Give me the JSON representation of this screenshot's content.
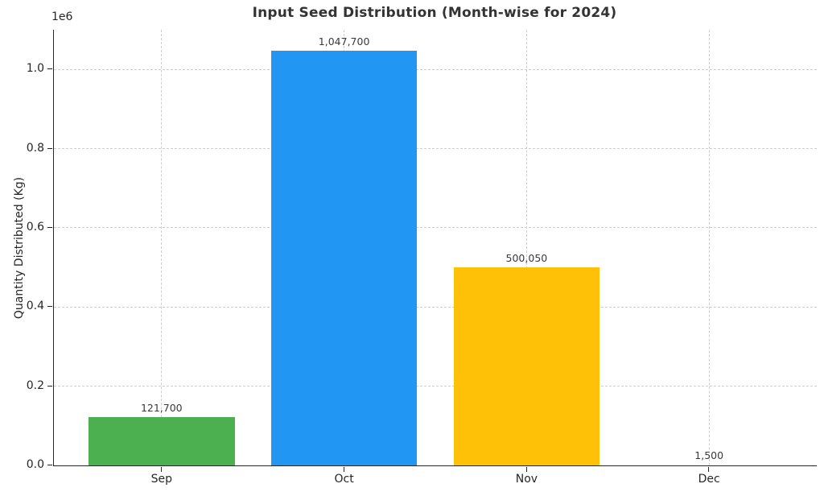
{
  "chart_data": {
    "type": "bar",
    "title": "Input Seed Distribution (Month-wise for 2024)",
    "xlabel": "",
    "ylabel": "Quantity Distributed (Kg)",
    "offset_label": "1e6",
    "categories": [
      "Sep",
      "Oct",
      "Nov",
      "Dec"
    ],
    "values": [
      121700,
      1047700,
      500050,
      1500
    ],
    "value_labels": [
      "121,700",
      "1,047,700",
      "500,050",
      "1,500"
    ],
    "bar_colors": [
      "#4caf50",
      "#2196f3",
      "#ffc107",
      null
    ],
    "ylim": [
      0,
      1100000
    ],
    "yticks": [
      0,
      200000,
      400000,
      600000,
      800000,
      1000000
    ],
    "ytick_labels": [
      "0.0",
      "0.2",
      "0.4",
      "0.6",
      "0.8",
      "1.0"
    ],
    "grid": true,
    "grid_style": "dashed",
    "legend": "none",
    "theme": {
      "background_color": "#ffffff",
      "axis_color": "#262626",
      "grid_color": "#cdcdcd",
      "title_color": "#333333",
      "label_color": "#3a3a3a"
    }
  }
}
